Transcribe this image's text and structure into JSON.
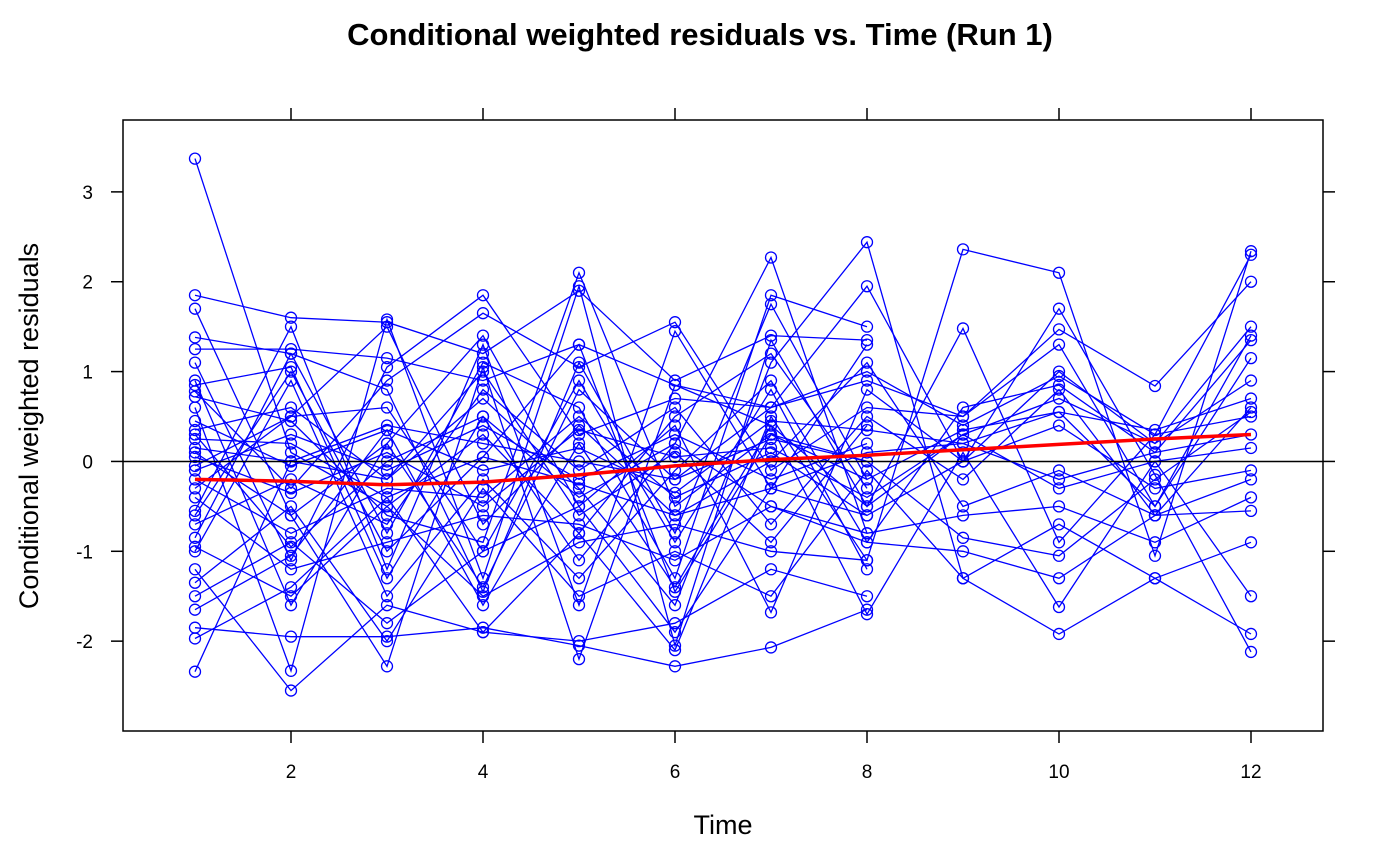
{
  "chart_data": {
    "type": "line",
    "title": "Conditional weighted residuals vs. Time (Run 1)",
    "xlabel": "Time",
    "ylabel": "Conditional weighted residuals",
    "xlim": [
      0.25,
      12.75
    ],
    "ylim": [
      -3.0,
      3.8
    ],
    "x_ticks": [
      2,
      4,
      6,
      8,
      10,
      12
    ],
    "y_ticks": [
      -2,
      -1,
      0,
      1,
      2,
      3
    ],
    "reference_line_y": 0,
    "grid": false,
    "legend": "none",
    "colors": {
      "subjects": "#0000ff",
      "smooth": "#ff0000",
      "reference": "#000000"
    },
    "x": [
      1,
      2,
      3,
      4,
      5,
      6,
      7,
      8,
      9,
      10,
      11,
      12
    ],
    "smooth": {
      "name": "",
      "x": [
        1,
        2,
        3,
        4,
        5,
        6,
        7,
        8,
        9,
        10,
        11,
        12
      ],
      "y": [
        -0.2,
        -0.22,
        -0.26,
        -0.23,
        -0.15,
        -0.05,
        0.02,
        0.07,
        0.13,
        0.19,
        0.25,
        0.3
      ]
    },
    "series": [
      {
        "x": [
          1,
          2,
          3,
          4,
          5,
          6,
          7,
          8
        ],
        "y": [
          3.37,
          0.1,
          -0.5,
          0.3,
          -0.8,
          0.5,
          1.2,
          -0.3
        ]
      },
      {
        "x": [
          1,
          2,
          3,
          4,
          5,
          6,
          7,
          8
        ],
        "y": [
          1.85,
          1.6,
          1.55,
          1.2,
          1.9,
          0.9,
          1.4,
          1.35
        ]
      },
      {
        "x": [
          1,
          2,
          3,
          4,
          5,
          6,
          7,
          8,
          9,
          10,
          11,
          12
        ],
        "y": [
          1.7,
          -0.6,
          0.2,
          -1.4,
          0.8,
          -0.2,
          0.6,
          0.9,
          0.5,
          1.3,
          -0.5,
          1.4
        ]
      },
      {
        "x": [
          1,
          2,
          3,
          4,
          5,
          6,
          7,
          8
        ],
        "y": [
          1.38,
          1.2,
          -0.8,
          1.1,
          0.6,
          -1.3,
          1.85,
          1.5
        ]
      },
      {
        "x": [
          1,
          2,
          3,
          4,
          5,
          6,
          7,
          8,
          9,
          10,
          11,
          12
        ],
        "y": [
          1.25,
          1.25,
          1.15,
          0.9,
          1.3,
          0.85,
          0.4,
          -0.5,
          0.3,
          0.7,
          0.2,
          1.5
        ]
      },
      {
        "x": [
          1,
          2,
          3,
          4,
          5,
          6,
          7,
          8,
          9,
          10,
          11,
          12
        ],
        "y": [
          1.1,
          -1.1,
          1.05,
          1.85,
          0.3,
          0.7,
          0.6,
          1.0,
          0.4,
          0.95,
          0.3,
          0.5
        ]
      },
      {
        "x": [
          1,
          2,
          3,
          4,
          5,
          6,
          7,
          8
        ],
        "y": [
          0.85,
          1.05,
          -1.3,
          0.5,
          -0.4,
          0.2,
          2.27,
          -0.8
        ]
      },
      {
        "x": [
          1,
          2,
          3,
          4,
          5,
          6,
          7,
          8,
          9,
          10,
          11,
          12
        ],
        "y": [
          0.78,
          -0.3,
          0.9,
          1.65,
          1.05,
          1.55,
          -0.1,
          0.6,
          0.5,
          1.47,
          0.84,
          2.0
        ]
      },
      {
        "x": [
          1,
          2,
          3,
          4,
          5,
          6,
          7,
          8
        ],
        "y": [
          0.72,
          0.45,
          -0.6,
          -0.9,
          2.1,
          -0.5,
          0.3,
          -0.2
        ]
      },
      {
        "x": [
          1,
          2,
          3,
          4,
          5,
          6,
          7,
          8,
          9,
          10,
          11,
          12
        ],
        "y": [
          0.45,
          -0.05,
          0.35,
          -0.1,
          0.15,
          -0.35,
          0.45,
          0.35,
          0.2,
          0.55,
          0.35,
          0.7
        ]
      },
      {
        "x": [
          1,
          2,
          3,
          4,
          5,
          6,
          7,
          8
        ],
        "y": [
          0.35,
          0.6,
          -0.2,
          1.0,
          -0.6,
          0.1,
          -0.9,
          0.4
        ]
      },
      {
        "x": [
          1,
          2,
          3,
          4,
          5,
          6,
          7,
          8,
          9,
          10,
          11,
          12
        ],
        "y": [
          0.25,
          0.2,
          -0.4,
          0.05,
          -0.25,
          -0.6,
          -0.3,
          0.1,
          0.2,
          -0.2,
          0.1,
          0.3
        ]
      },
      {
        "x": [
          1,
          2,
          3,
          4,
          5,
          6,
          7,
          8
        ],
        "y": [
          0.15,
          0.0,
          0.4,
          0.2,
          0.0,
          -0.2,
          0.25,
          0.0
        ]
      },
      {
        "x": [
          1,
          2,
          3,
          4,
          5,
          6,
          7,
          8,
          9,
          10,
          11,
          12
        ],
        "y": [
          0.05,
          -0.35,
          0.1,
          -0.5,
          0.35,
          0.05,
          0.15,
          -0.4,
          0.3,
          -0.3,
          0.0,
          0.15
        ]
      },
      {
        "x": [
          1,
          2,
          3,
          4,
          5,
          6,
          7,
          8
        ],
        "y": [
          -0.1,
          0.3,
          -0.1,
          0.4,
          -0.2,
          0.3,
          -0.2,
          0.2
        ]
      },
      {
        "x": [
          1,
          2,
          3,
          4,
          5,
          6,
          7,
          8,
          9,
          10,
          11,
          12
        ],
        "y": [
          -0.2,
          -0.8,
          -0.3,
          -0.4,
          0.5,
          -0.4,
          0.1,
          -0.6,
          0.0,
          0.4,
          -0.3,
          -0.1
        ]
      },
      {
        "x": [
          1,
          2,
          3,
          4,
          5,
          6,
          7,
          8
        ],
        "y": [
          -0.3,
          0.5,
          0.6,
          -1.0,
          0.9,
          -0.9,
          0.8,
          -1.2
        ]
      },
      {
        "x": [
          1,
          2,
          3,
          4,
          5,
          6,
          7,
          8,
          9,
          10,
          11,
          12
        ],
        "y": [
          -0.4,
          -1.2,
          -0.9,
          -0.6,
          -0.7,
          -1.1,
          -0.5,
          -0.8,
          -0.6,
          -0.5,
          -0.9,
          -0.4
        ]
      },
      {
        "x": [
          1,
          2,
          3,
          4,
          5,
          6,
          7,
          8
        ],
        "y": [
          -0.55,
          1.5,
          -1.2,
          1.3,
          -1.6,
          1.45,
          -0.3,
          1.3
        ]
      },
      {
        "x": [
          1,
          2,
          3,
          4,
          5,
          6,
          7,
          8,
          9,
          10,
          11,
          12
        ],
        "y": [
          -0.7,
          -0.2,
          -0.7,
          0.8,
          -0.1,
          0.6,
          -0.7,
          0.5,
          -0.2,
          0.8,
          -0.6,
          0.6
        ]
      },
      {
        "x": [
          1,
          2,
          3,
          4,
          5,
          6,
          7,
          8
        ],
        "y": [
          -0.95,
          -1.5,
          -0.5,
          -1.5,
          -0.9,
          -0.7,
          -1.0,
          -1.1
        ]
      },
      {
        "x": [
          1,
          2,
          3,
          4,
          5,
          6,
          7,
          8,
          9,
          10,
          11,
          12
        ],
        "y": [
          -1.0,
          0.9,
          -1.5,
          -0.2,
          -1.3,
          -0.1,
          0.9,
          -0.9,
          -1.0,
          -1.3,
          -0.6,
          -0.2
        ]
      },
      {
        "x": [
          1,
          2,
          3,
          4,
          5,
          6,
          7,
          8
        ],
        "y": [
          -1.2,
          -2.55,
          -1.6,
          -1.9,
          -2.0,
          -1.8,
          -1.2,
          -1.5
        ]
      },
      {
        "x": [
          1,
          2,
          3,
          4,
          5,
          6,
          7,
          8,
          9,
          10,
          11,
          12
        ],
        "y": [
          -1.35,
          -0.5,
          -2.0,
          -0.3,
          -1.5,
          -1.0,
          -1.5,
          -0.1,
          -1.3,
          -0.7,
          -1.3,
          -0.9
        ]
      },
      {
        "x": [
          1,
          2,
          3,
          4,
          5,
          6,
          7,
          8
        ],
        "y": [
          -1.5,
          -0.9,
          -1.8,
          -1.0,
          -0.5,
          -1.9,
          -0.3,
          -0.6
        ]
      },
      {
        "x": [
          1,
          2,
          3,
          4,
          5,
          6,
          7,
          8,
          9,
          10,
          11,
          12
        ],
        "y": [
          -1.65,
          -1.05,
          0.35,
          -1.6,
          0.2,
          -1.4,
          0.4,
          -1.7,
          0.1,
          -1.62,
          0.0,
          -1.5
        ]
      },
      {
        "x": [
          1,
          2,
          3,
          4,
          5,
          6,
          7,
          8
        ],
        "y": [
          -1.85,
          -1.95,
          -1.95,
          -1.85,
          -2.05,
          -2.28,
          -2.07,
          -1.65
        ]
      },
      {
        "x": [
          1,
          2,
          3,
          4,
          5,
          6,
          7,
          8,
          9,
          10,
          11,
          12
        ],
        "y": [
          -1.97,
          -1.4,
          -0.4,
          -1.9,
          -0.8,
          -2.1,
          0.5,
          -1.1,
          2.36,
          2.1,
          -1.05,
          2.34
        ]
      },
      {
        "x": [
          1,
          2,
          3,
          4,
          5,
          6,
          7,
          8,
          9,
          10,
          11,
          12
        ],
        "y": [
          -2.34,
          0.0,
          -0.2,
          0.7,
          -0.3,
          -1.6,
          1.1,
          2.44,
          -1.3,
          -1.92,
          -1.3,
          -1.92
        ]
      },
      {
        "x": [
          1,
          2,
          3,
          4,
          5,
          6,
          7,
          8,
          9,
          10,
          11,
          12
        ],
        "y": [
          0.6,
          -2.33,
          1.58,
          -1.3,
          1.95,
          -2.05,
          1.35,
          -0.5,
          1.48,
          -0.9,
          0.3,
          2.3
        ]
      },
      {
        "x": [
          1,
          2,
          3,
          4,
          5,
          6,
          7,
          8,
          9,
          10,
          11,
          12
        ],
        "y": [
          0.1,
          -0.6,
          -2.28,
          1.05,
          -2.2,
          0.85,
          0.6,
          1.95,
          0.0,
          1.7,
          -0.15,
          -2.12
        ]
      },
      {
        "x": [
          1,
          2,
          3,
          4,
          5,
          6,
          7,
          8,
          9,
          10,
          11,
          12
        ],
        "y": [
          -0.85,
          1.2,
          0.8,
          -1.45,
          1.1,
          -0.8,
          1.75,
          -0.2,
          0.35,
          0.55,
          -0.5,
          1.15
        ]
      },
      {
        "x": [
          1,
          2,
          3,
          4,
          5,
          6,
          7,
          8,
          9,
          10,
          11,
          12
        ],
        "y": [
          0.9,
          -1.6,
          0.2,
          1.4,
          -0.5,
          0.4,
          -1.68,
          0.8,
          0.0,
          1.0,
          0.2,
          0.9
        ]
      },
      {
        "x": [
          1,
          2,
          3,
          4,
          5,
          6,
          7,
          8,
          9,
          10,
          11,
          12
        ],
        "y": [
          -0.05,
          0.5,
          1.5,
          -0.7,
          0.4,
          -0.6,
          0.0,
          1.1,
          -0.5,
          -0.1,
          -0.6,
          -0.55
        ]
      },
      {
        "x": [
          1,
          2,
          3,
          4,
          5,
          6,
          7,
          8,
          9,
          10,
          11,
          12
        ],
        "y": [
          0.3,
          -0.95,
          0.0,
          0.5,
          -1.1,
          0.2,
          -0.5,
          -0.9,
          0.6,
          0.85,
          0.1,
          1.35
        ]
      },
      {
        "x": [
          1,
          2,
          3,
          4,
          5,
          6,
          7,
          8,
          9,
          10,
          11,
          12
        ],
        "y": [
          -0.6,
          1.0,
          -1.0,
          0.05,
          1.3,
          -1.45,
          0.3,
          0.0,
          -0.85,
          -1.05,
          -0.2,
          0.55
        ]
      }
    ]
  }
}
